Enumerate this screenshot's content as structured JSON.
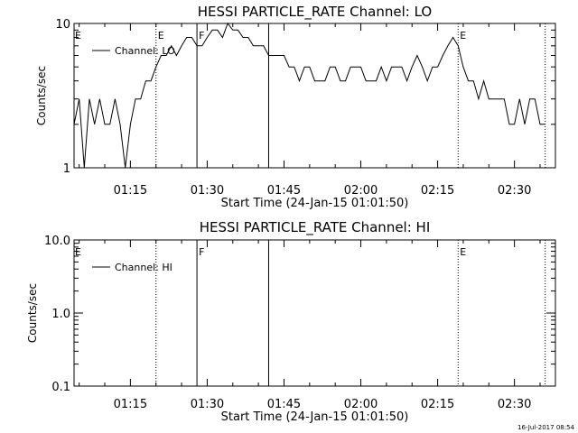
{
  "footer_timestamp": "16-Jul-2017 08:54",
  "chart_data": [
    {
      "type": "line",
      "title": "HESSI PARTICLE_RATE Channel: LO",
      "xlabel": "Start Time (24-Jan-15 01:01:50)",
      "ylabel": "Counts/sec",
      "yscale": "log",
      "xlim": [
        "01:04",
        "02:38"
      ],
      "ylim": [
        1,
        10
      ],
      "x_ticks": [
        "01:15",
        "01:30",
        "01:45",
        "02:00",
        "02:15",
        "02:30"
      ],
      "y_ticks": [
        "1",
        "10"
      ],
      "legend": {
        "label": "Channel: LO",
        "placement": "top-left"
      },
      "markers": [
        {
          "time": "01:20",
          "style": "dotted",
          "label": "E"
        },
        {
          "time": "01:28",
          "style": "solid",
          "label": "F"
        },
        {
          "time": "01:42",
          "style": "solid",
          "label": ""
        },
        {
          "time": "02:19",
          "style": "dotted",
          "label": "E"
        },
        {
          "time": "02:36",
          "style": "dotted",
          "label": ""
        }
      ],
      "left_label": "E",
      "series": [
        {
          "x": [
            "01:04",
            "01:05",
            "01:06",
            "01:07",
            "01:08",
            "01:09",
            "01:10",
            "01:11",
            "01:12",
            "01:13",
            "01:14",
            "01:15",
            "01:16",
            "01:17",
            "01:18",
            "01:19",
            "01:20",
            "01:21",
            "01:22",
            "01:23",
            "01:24",
            "01:25",
            "01:26",
            "01:27",
            "01:28",
            "01:29",
            "01:30",
            "01:31",
            "01:32",
            "01:33",
            "01:34",
            "01:35",
            "01:36",
            "01:37",
            "01:38",
            "01:39",
            "01:40",
            "01:41",
            "01:42",
            "01:43",
            "01:44",
            "01:45",
            "01:46",
            "01:47",
            "01:48",
            "01:49",
            "01:50",
            "01:51",
            "01:52",
            "01:53",
            "01:54",
            "01:55",
            "01:56",
            "01:57",
            "01:58",
            "01:59",
            "02:00",
            "02:01",
            "02:02",
            "02:03",
            "02:04",
            "02:05",
            "02:06",
            "02:07",
            "02:08",
            "02:09",
            "02:10",
            "02:11",
            "02:12",
            "02:13",
            "02:14",
            "02:15",
            "02:16",
            "02:17",
            "02:18",
            "02:19",
            "02:20",
            "02:21",
            "02:22",
            "02:23",
            "02:24",
            "02:25",
            "02:26",
            "02:27",
            "02:28",
            "02:29",
            "02:30",
            "02:31",
            "02:32",
            "02:33",
            "02:34",
            "02:35",
            "02:36"
          ],
          "values": [
            2,
            3,
            1,
            3,
            2,
            3,
            2,
            2,
            3,
            2,
            1,
            2,
            3,
            3,
            4,
            4,
            5,
            6,
            6,
            7,
            6,
            7,
            8,
            8,
            7,
            7,
            8,
            9,
            9,
            8,
            10,
            9,
            9,
            8,
            8,
            7,
            7,
            7,
            6,
            6,
            6,
            6,
            5,
            5,
            4,
            5,
            5,
            4,
            4,
            4,
            5,
            5,
            4,
            4,
            5,
            5,
            5,
            4,
            4,
            4,
            5,
            4,
            5,
            5,
            5,
            4,
            5,
            6,
            5,
            4,
            5,
            5,
            6,
            7,
            8,
            7,
            5,
            4,
            4,
            3,
            4,
            3,
            3,
            3,
            3,
            2,
            2,
            3,
            2,
            3,
            3,
            2,
            2
          ]
        }
      ]
    },
    {
      "type": "line",
      "title": "HESSI PARTICLE_RATE Channel: HI",
      "xlabel": "Start Time (24-Jan-15 01:01:50)",
      "ylabel": "Counts/sec",
      "yscale": "log",
      "xlim": [
        "01:04",
        "02:38"
      ],
      "ylim": [
        0.1,
        10.0
      ],
      "x_ticks": [
        "01:15",
        "01:30",
        "01:45",
        "02:00",
        "02:15",
        "02:30"
      ],
      "y_ticks": [
        "0.1",
        "1.0",
        "10.0"
      ],
      "legend": {
        "label": "Channel: HI",
        "placement": "top-left"
      },
      "markers": [
        {
          "time": "01:20",
          "style": "dotted",
          "label": ""
        },
        {
          "time": "01:28",
          "style": "solid",
          "label": "F"
        },
        {
          "time": "01:42",
          "style": "solid",
          "label": ""
        },
        {
          "time": "02:19",
          "style": "dotted",
          "label": "E"
        },
        {
          "time": "02:36",
          "style": "dotted",
          "label": ""
        }
      ],
      "left_label": "E",
      "series": [
        {
          "x": [],
          "values": []
        }
      ]
    }
  ]
}
